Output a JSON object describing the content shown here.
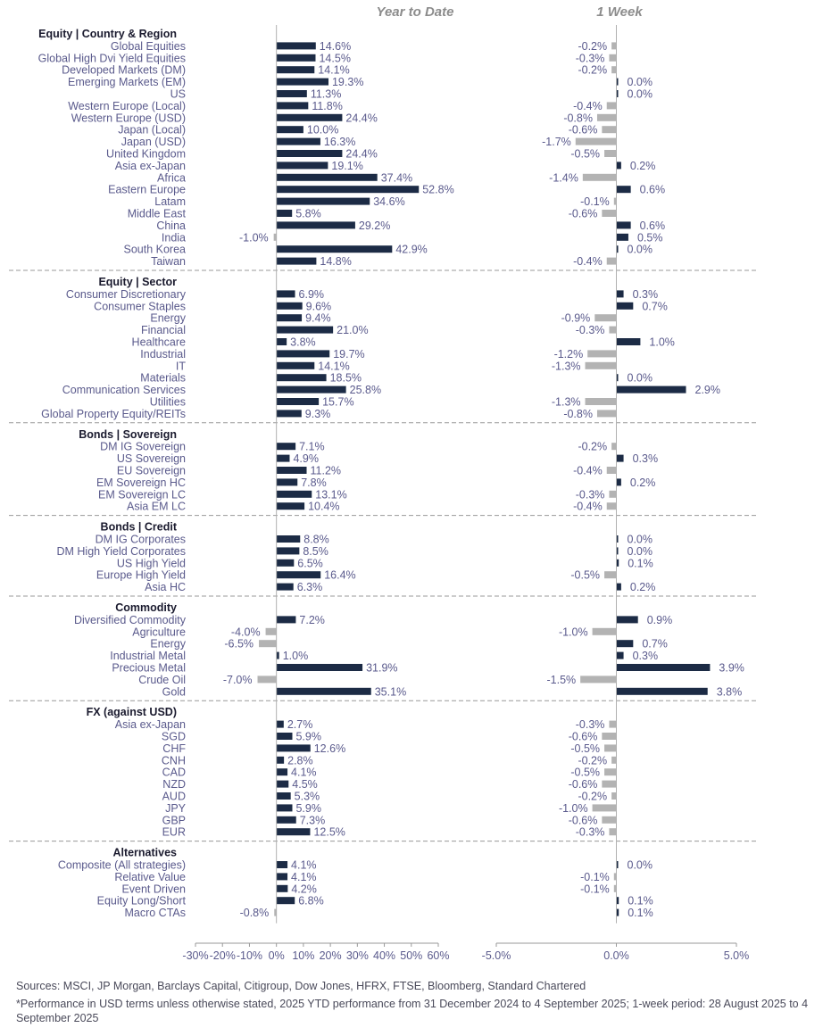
{
  "chart_data": {
    "type": "bar",
    "orientation": "horizontal",
    "panels": [
      "Year to Date",
      "1 Week"
    ],
    "colors": {
      "positive": "#1c2b45",
      "negative": "#b3b3b3",
      "separator": "#999999",
      "label": "#5a5a8c"
    },
    "ytd_axis": {
      "min": -30,
      "max": 60,
      "ticks": [
        "-30%",
        "-20%",
        "-10%",
        "0%",
        "10%",
        "20%",
        "30%",
        "40%",
        "50%",
        "60%"
      ]
    },
    "week_axis": {
      "min": -5,
      "max": 5,
      "ticks": [
        "-5.0%",
        "0.0%",
        "5.0%"
      ]
    },
    "sections": [
      {
        "header": "Equity | Country & Region",
        "rows": [
          {
            "name": "Global Equities",
            "ytd": 14.6,
            "ytd_label": "14.6%",
            "wk": -0.2,
            "wk_label": "-0.2%"
          },
          {
            "name": "Global High Dvi Yield Equities",
            "ytd": 14.5,
            "ytd_label": "14.5%",
            "wk": -0.3,
            "wk_label": "-0.3%"
          },
          {
            "name": "Developed Markets (DM)",
            "ytd": 14.1,
            "ytd_label": "14.1%",
            "wk": -0.2,
            "wk_label": "-0.2%"
          },
          {
            "name": "Emerging Markets (EM)",
            "ytd": 19.3,
            "ytd_label": "19.3%",
            "wk": 0.0,
            "wk_label": "0.0%"
          },
          {
            "name": "US",
            "ytd": 11.3,
            "ytd_label": "11.3%",
            "wk": 0.0,
            "wk_label": "0.0%"
          },
          {
            "name": "Western Europe (Local)",
            "ytd": 11.8,
            "ytd_label": "11.8%",
            "wk": -0.4,
            "wk_label": "-0.4%"
          },
          {
            "name": "Western Europe (USD)",
            "ytd": 24.4,
            "ytd_label": "24.4%",
            "wk": -0.8,
            "wk_label": "-0.8%"
          },
          {
            "name": "Japan (Local)",
            "ytd": 10.0,
            "ytd_label": "10.0%",
            "wk": -0.6,
            "wk_label": "-0.6%"
          },
          {
            "name": "Japan (USD)",
            "ytd": 16.3,
            "ytd_label": "16.3%",
            "wk": -1.7,
            "wk_label": "-1.7%"
          },
          {
            "name": "United Kingdom",
            "ytd": 24.4,
            "ytd_label": "24.4%",
            "wk": -0.5,
            "wk_label": "-0.5%"
          },
          {
            "name": "Asia ex-Japan",
            "ytd": 19.1,
            "ytd_label": "19.1%",
            "wk": 0.2,
            "wk_label": "0.2%"
          },
          {
            "name": "Africa",
            "ytd": 37.4,
            "ytd_label": "37.4%",
            "wk": -1.4,
            "wk_label": "-1.4%"
          },
          {
            "name": "Eastern Europe",
            "ytd": 52.8,
            "ytd_label": "52.8%",
            "wk": 0.6,
            "wk_label": "0.6%"
          },
          {
            "name": "Latam",
            "ytd": 34.6,
            "ytd_label": "34.6%",
            "wk": -0.1,
            "wk_label": "-0.1%"
          },
          {
            "name": "Middle East",
            "ytd": 5.8,
            "ytd_label": "5.8%",
            "wk": -0.6,
            "wk_label": "-0.6%"
          },
          {
            "name": "China",
            "ytd": 29.2,
            "ytd_label": "29.2%",
            "wk": 0.6,
            "wk_label": "0.6%"
          },
          {
            "name": "India",
            "ytd": -1.0,
            "ytd_label": "-1.0%",
            "wk": 0.5,
            "wk_label": "0.5%"
          },
          {
            "name": "South Korea",
            "ytd": 42.9,
            "ytd_label": "42.9%",
            "wk": 0.0,
            "wk_label": "0.0%"
          },
          {
            "name": "Taiwan",
            "ytd": 14.8,
            "ytd_label": "14.8%",
            "wk": -0.4,
            "wk_label": "-0.4%"
          }
        ]
      },
      {
        "header": "Equity | Sector",
        "rows": [
          {
            "name": "Consumer Discretionary",
            "ytd": 6.9,
            "ytd_label": "6.9%",
            "wk": 0.3,
            "wk_label": "0.3%"
          },
          {
            "name": "Consumer Staples",
            "ytd": 9.6,
            "ytd_label": "9.6%",
            "wk": 0.7,
            "wk_label": "0.7%"
          },
          {
            "name": "Energy",
            "ytd": 9.4,
            "ytd_label": "9.4%",
            "wk": -0.9,
            "wk_label": "-0.9%"
          },
          {
            "name": "Financial",
            "ytd": 21.0,
            "ytd_label": "21.0%",
            "wk": -0.3,
            "wk_label": "-0.3%"
          },
          {
            "name": "Healthcare",
            "ytd": 3.8,
            "ytd_label": "3.8%",
            "wk": 1.0,
            "wk_label": "1.0%"
          },
          {
            "name": "Industrial",
            "ytd": 19.7,
            "ytd_label": "19.7%",
            "wk": -1.2,
            "wk_label": "-1.2%"
          },
          {
            "name": "IT",
            "ytd": 14.1,
            "ytd_label": "14.1%",
            "wk": -1.3,
            "wk_label": "-1.3%"
          },
          {
            "name": "Materials",
            "ytd": 18.5,
            "ytd_label": "18.5%",
            "wk": 0.0,
            "wk_label": "0.0%"
          },
          {
            "name": "Communication Services",
            "ytd": 25.8,
            "ytd_label": "25.8%",
            "wk": 2.9,
            "wk_label": "2.9%"
          },
          {
            "name": "Utilities",
            "ytd": 15.7,
            "ytd_label": "15.7%",
            "wk": -1.3,
            "wk_label": "-1.3%"
          },
          {
            "name": "Global Property Equity/REITs",
            "ytd": 9.3,
            "ytd_label": "9.3%",
            "wk": -0.8,
            "wk_label": "-0.8%"
          }
        ]
      },
      {
        "header": "Bonds | Sovereign",
        "rows": [
          {
            "name": "DM IG Sovereign",
            "ytd": 7.1,
            "ytd_label": "7.1%",
            "wk": -0.2,
            "wk_label": "-0.2%"
          },
          {
            "name": "US Sovereign",
            "ytd": 4.9,
            "ytd_label": "4.9%",
            "wk": 0.3,
            "wk_label": "0.3%"
          },
          {
            "name": "EU Sovereign",
            "ytd": 11.2,
            "ytd_label": "11.2%",
            "wk": -0.4,
            "wk_label": "-0.4%"
          },
          {
            "name": "EM Sovereign HC",
            "ytd": 7.8,
            "ytd_label": "7.8%",
            "wk": 0.2,
            "wk_label": "0.2%"
          },
          {
            "name": "EM Sovereign LC",
            "ytd": 13.1,
            "ytd_label": "13.1%",
            "wk": -0.3,
            "wk_label": "-0.3%"
          },
          {
            "name": "Asia EM LC",
            "ytd": 10.4,
            "ytd_label": "10.4%",
            "wk": -0.4,
            "wk_label": "-0.4%"
          }
        ]
      },
      {
        "header": "Bonds | Credit",
        "rows": [
          {
            "name": "DM IG Corporates",
            "ytd": 8.8,
            "ytd_label": "8.8%",
            "wk": 0.0,
            "wk_label": "0.0%"
          },
          {
            "name": "DM High Yield Corporates",
            "ytd": 8.5,
            "ytd_label": "8.5%",
            "wk": 0.0,
            "wk_label": "0.0%"
          },
          {
            "name": "US High Yield",
            "ytd": 6.5,
            "ytd_label": "6.5%",
            "wk": 0.1,
            "wk_label": "0.1%"
          },
          {
            "name": "Europe High Yield",
            "ytd": 16.4,
            "ytd_label": "16.4%",
            "wk": -0.5,
            "wk_label": "-0.5%"
          },
          {
            "name": "Asia HC",
            "ytd": 6.3,
            "ytd_label": "6.3%",
            "wk": 0.2,
            "wk_label": "0.2%"
          }
        ]
      },
      {
        "header": "Commodity",
        "rows": [
          {
            "name": "Diversified Commodity",
            "ytd": 7.2,
            "ytd_label": "7.2%",
            "wk": 0.9,
            "wk_label": "0.9%"
          },
          {
            "name": "Agriculture",
            "ytd": -4.0,
            "ytd_label": "-4.0%",
            "wk": -1.0,
            "wk_label": "-1.0%"
          },
          {
            "name": "Energy",
            "ytd": -6.5,
            "ytd_label": "-6.5%",
            "wk": 0.7,
            "wk_label": "0.7%"
          },
          {
            "name": "Industrial Metal",
            "ytd": 1.0,
            "ytd_label": "1.0%",
            "wk": 0.3,
            "wk_label": "0.3%"
          },
          {
            "name": "Precious Metal",
            "ytd": 31.9,
            "ytd_label": "31.9%",
            "wk": 3.9,
            "wk_label": "3.9%"
          },
          {
            "name": "Crude Oil",
            "ytd": -7.0,
            "ytd_label": "-7.0%",
            "wk": -1.5,
            "wk_label": "-1.5%"
          },
          {
            "name": "Gold",
            "ytd": 35.1,
            "ytd_label": "35.1%",
            "wk": 3.8,
            "wk_label": "3.8%"
          }
        ]
      },
      {
        "header": "FX (against USD)",
        "rows": [
          {
            "name": "Asia ex-Japan",
            "ytd": 2.7,
            "ytd_label": "2.7%",
            "wk": -0.3,
            "wk_label": "-0.3%"
          },
          {
            "name": "SGD",
            "ytd": 5.9,
            "ytd_label": "5.9%",
            "wk": -0.6,
            "wk_label": "-0.6%"
          },
          {
            "name": "CHF",
            "ytd": 12.6,
            "ytd_label": "12.6%",
            "wk": -0.5,
            "wk_label": "-0.5%"
          },
          {
            "name": "CNH",
            "ytd": 2.8,
            "ytd_label": "2.8%",
            "wk": -0.2,
            "wk_label": "-0.2%"
          },
          {
            "name": "CAD",
            "ytd": 4.1,
            "ytd_label": "4.1%",
            "wk": -0.5,
            "wk_label": "-0.5%"
          },
          {
            "name": "NZD",
            "ytd": 4.5,
            "ytd_label": "4.5%",
            "wk": -0.6,
            "wk_label": "-0.6%"
          },
          {
            "name": "AUD",
            "ytd": 5.3,
            "ytd_label": "5.3%",
            "wk": -0.2,
            "wk_label": "-0.2%"
          },
          {
            "name": "JPY",
            "ytd": 5.9,
            "ytd_label": "5.9%",
            "wk": -1.0,
            "wk_label": "-1.0%"
          },
          {
            "name": "GBP",
            "ytd": 7.3,
            "ytd_label": "7.3%",
            "wk": -0.6,
            "wk_label": "-0.6%"
          },
          {
            "name": "EUR",
            "ytd": 12.5,
            "ytd_label": "12.5%",
            "wk": -0.3,
            "wk_label": "-0.3%"
          }
        ]
      },
      {
        "header": "Alternatives",
        "rows": [
          {
            "name": "Composite (All strategies)",
            "ytd": 4.1,
            "ytd_label": "4.1%",
            "wk": 0.0,
            "wk_label": "0.0%"
          },
          {
            "name": "Relative Value",
            "ytd": 4.1,
            "ytd_label": "4.1%",
            "wk": -0.1,
            "wk_label": "-0.1%"
          },
          {
            "name": "Event Driven",
            "ytd": 4.2,
            "ytd_label": "4.2%",
            "wk": -0.1,
            "wk_label": "-0.1%"
          },
          {
            "name": "Equity Long/Short",
            "ytd": 6.8,
            "ytd_label": "6.8%",
            "wk": 0.1,
            "wk_label": "0.1%"
          },
          {
            "name": "Macro CTAs",
            "ytd": -0.8,
            "ytd_label": "-0.8%",
            "wk": 0.1,
            "wk_label": "0.1%"
          }
        ]
      }
    ]
  },
  "footer": {
    "sources": "Sources: MSCI, JP Morgan, Barclays Capital, Citigroup, Dow Jones, HFRX, FTSE, Bloomberg, Standard Chartered",
    "note": "*Performance in USD terms unless otherwise stated, 2025 YTD performance from 31 December 2024 to 4 September 2025; 1-week period: 28 August 2025 to 4 September 2025"
  }
}
